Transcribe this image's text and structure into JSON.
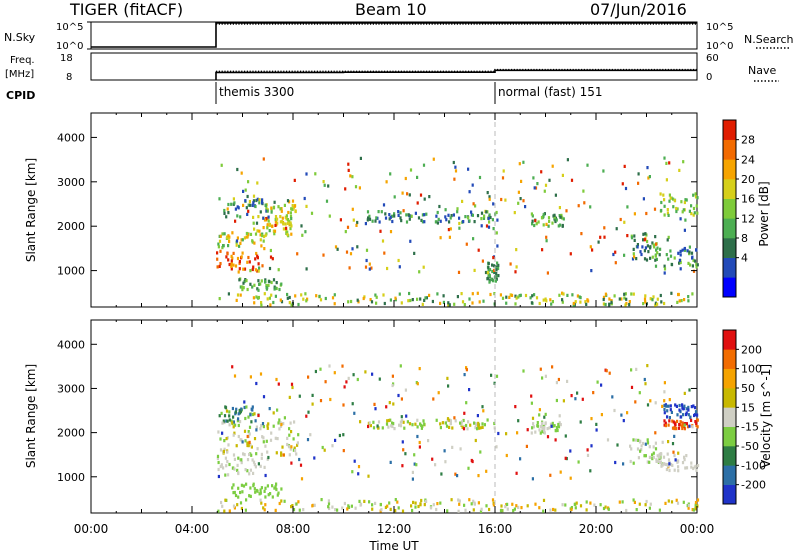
{
  "header": {
    "radar": "TIGER (fitACF)",
    "beam": "Beam 10",
    "date": "07/Jun/2016"
  },
  "chart_data": [
    {
      "type": "line",
      "name": "N.Sky / N.Search panel",
      "left_label": "N.Sky",
      "right_label": "N.Search",
      "left_ticks": [
        "10^5",
        "10^0"
      ],
      "right_ticks": [
        "10^5",
        "10^0"
      ],
      "series": [
        {
          "name": "N.Sky",
          "x_hours": [
            0,
            4.95,
            4.95,
            24
          ],
          "values": [
            0,
            0,
            1,
            1
          ]
        },
        {
          "name": "N.Search",
          "x_hours": [
            4.95,
            24
          ],
          "values": [
            1,
            1
          ]
        }
      ]
    },
    {
      "type": "line",
      "name": "Freq / Nave panel",
      "left_label_top": "Freq.",
      "left_label_bottom": "[MHz]",
      "right_label": "Nave",
      "left_ticks": [
        "18",
        "8"
      ],
      "right_ticks": [
        "60",
        "0"
      ],
      "left_range": [
        8,
        18
      ],
      "right_range": [
        0,
        60
      ],
      "series": [
        {
          "name": "Freq",
          "x_hours": [
            4.95,
            10.0,
            10.0,
            16.0,
            16.0,
            24
          ],
          "values": [
            10.8,
            10.8,
            10.9,
            10.9,
            11.6,
            11.6
          ]
        },
        {
          "name": "Nave",
          "x_hours": [
            4.95,
            10.0,
            10.0,
            16.0,
            16.0,
            24
          ],
          "values": [
            17,
            17,
            17,
            17,
            21,
            21
          ]
        }
      ]
    },
    {
      "type": "table",
      "name": "CPID",
      "label": "CPID",
      "entries": [
        {
          "start_hour": 4.95,
          "text": "themis 3300"
        },
        {
          "start_hour": 16.0,
          "text": "normal (fast) 151"
        }
      ]
    },
    {
      "type": "heatmap",
      "name": "Power",
      "ylabel": "Slant Range [km]",
      "y_ticks": [
        1000,
        2000,
        3000,
        4000
      ],
      "ylim": [
        180,
        4550
      ],
      "colorbar_label": "Power [dB]",
      "colorbar_ticks": [
        "28",
        "24",
        "20",
        "16",
        "12",
        "8",
        "4"
      ],
      "colorbar_colors": [
        "#0000ff",
        "#224ab8",
        "#2e6f4a",
        "#4cae52",
        "#7ecb3a",
        "#d6cf1a",
        "#f6a400",
        "#f26a00",
        "#e01d00"
      ],
      "clusters": [
        {
          "x": [
            4.95,
            6.7
          ],
          "y": [
            930,
            1400
          ],
          "levels": [
            7,
            8,
            8,
            6
          ]
        },
        {
          "x": [
            4.95,
            6.9
          ],
          "y": [
            1450,
            1820
          ],
          "levels": [
            4,
            5,
            3,
            6
          ]
        },
        {
          "x": [
            6.2,
            7.9
          ],
          "y": [
            1750,
            2200
          ],
          "levels": [
            4,
            6,
            5
          ]
        },
        {
          "x": [
            6.9,
            8.1
          ],
          "y": [
            1950,
            2450
          ],
          "levels": [
            5,
            6,
            4
          ]
        },
        {
          "x": [
            5.0,
            7.0
          ],
          "y": [
            2150,
            2650
          ],
          "levels": [
            1,
            2,
            3,
            5
          ]
        },
        {
          "x": [
            5.8,
            7.5
          ],
          "y": [
            520,
            780
          ],
          "levels": [
            3,
            4,
            2
          ]
        },
        {
          "x": [
            10.9,
            13.3
          ],
          "y": [
            2050,
            2300
          ],
          "levels": [
            1,
            2,
            3
          ]
        },
        {
          "x": [
            13.6,
            16.1
          ],
          "y": [
            2050,
            2300
          ],
          "levels": [
            1,
            2,
            3,
            4
          ]
        },
        {
          "x": [
            17.4,
            18.7
          ],
          "y": [
            1950,
            2250
          ],
          "levels": [
            2,
            3,
            4
          ]
        },
        {
          "x": [
            21.3,
            22.5
          ],
          "y": [
            1200,
            1800
          ],
          "levels": [
            1,
            2,
            3,
            4
          ]
        },
        {
          "x": [
            22.3,
            24.0
          ],
          "y": [
            1000,
            1500
          ],
          "levels": [
            1,
            2,
            3,
            4
          ]
        },
        {
          "x": [
            22.5,
            24.0
          ],
          "y": [
            2200,
            2700
          ],
          "levels": [
            3,
            4,
            5
          ]
        },
        {
          "x": [
            15.6,
            16.1
          ],
          "y": [
            700,
            1150
          ],
          "levels": [
            2,
            3
          ]
        },
        {
          "x": [
            5.0,
            24.0
          ],
          "y": [
            180,
            460
          ],
          "levels": [
            2,
            3,
            4,
            5,
            6
          ]
        },
        {
          "x": [
            5.0,
            24.0
          ],
          "y": [
            900,
            3500
          ],
          "levels": [
            1,
            2,
            3,
            4,
            5,
            6,
            7,
            8
          ],
          "sparse": true
        }
      ]
    },
    {
      "type": "heatmap",
      "name": "Velocity",
      "ylabel": "Slant Range [km]",
      "y_ticks": [
        1000,
        2000,
        3000,
        4000
      ],
      "ylim": [
        180,
        4550
      ],
      "xlabel": "Time UT",
      "x_ticks": [
        "00:00",
        "04:00",
        "08:00",
        "12:00",
        "16:00",
        "20:00",
        "00:00"
      ],
      "colorbar_label": "Velocity [m s^-1]",
      "colorbar_ticks": [
        "200",
        "100",
        "50",
        "15",
        "-15",
        "-50",
        "-100",
        "-200"
      ],
      "colorbar_colors": [
        "#1f33c9",
        "#2c6fa6",
        "#2e7d44",
        "#7ccd42",
        "#cfcfc4",
        "#c8b800",
        "#f5a300",
        "#f26c00",
        "#e01010"
      ],
      "clusters": [
        {
          "x": [
            4.95,
            7.0
          ],
          "y": [
            1000,
            1500
          ],
          "levels": [
            4,
            4,
            4,
            3
          ]
        },
        {
          "x": [
            5.0,
            8.2
          ],
          "y": [
            1450,
            2250
          ],
          "levels": [
            4,
            4,
            3,
            5
          ]
        },
        {
          "x": [
            5.0,
            6.5
          ],
          "y": [
            2200,
            2550
          ],
          "levels": [
            2,
            1,
            3
          ]
        },
        {
          "x": [
            5.5,
            7.5
          ],
          "y": [
            500,
            800
          ],
          "levels": [
            3
          ]
        },
        {
          "x": [
            10.9,
            13.3
          ],
          "y": [
            2050,
            2250
          ],
          "levels": [
            4,
            5,
            3
          ]
        },
        {
          "x": [
            13.6,
            16.1
          ],
          "y": [
            2050,
            2250
          ],
          "levels": [
            4,
            3,
            5
          ]
        },
        {
          "x": [
            17.4,
            18.7
          ],
          "y": [
            1950,
            2200
          ],
          "levels": [
            4,
            3
          ]
        },
        {
          "x": [
            21.3,
            22.6
          ],
          "y": [
            1250,
            1800
          ],
          "levels": [
            4,
            4,
            3
          ]
        },
        {
          "x": [
            22.4,
            24.0
          ],
          "y": [
            1100,
            1500
          ],
          "levels": [
            4,
            4,
            4
          ]
        },
        {
          "x": [
            22.6,
            24.0
          ],
          "y": [
            2300,
            2600
          ],
          "levels": [
            0,
            0,
            1
          ]
        },
        {
          "x": [
            22.6,
            24.0
          ],
          "y": [
            2050,
            2250
          ],
          "levels": [
            8,
            7
          ]
        },
        {
          "x": [
            5.0,
            24.0
          ],
          "y": [
            180,
            450
          ],
          "levels": [
            3,
            3,
            4,
            5,
            6
          ]
        },
        {
          "x": [
            5.0,
            24.0
          ],
          "y": [
            900,
            3500
          ],
          "levels": [
            0,
            1,
            2,
            3,
            4,
            5,
            6,
            7,
            8
          ],
          "sparse": true
        }
      ]
    }
  ]
}
